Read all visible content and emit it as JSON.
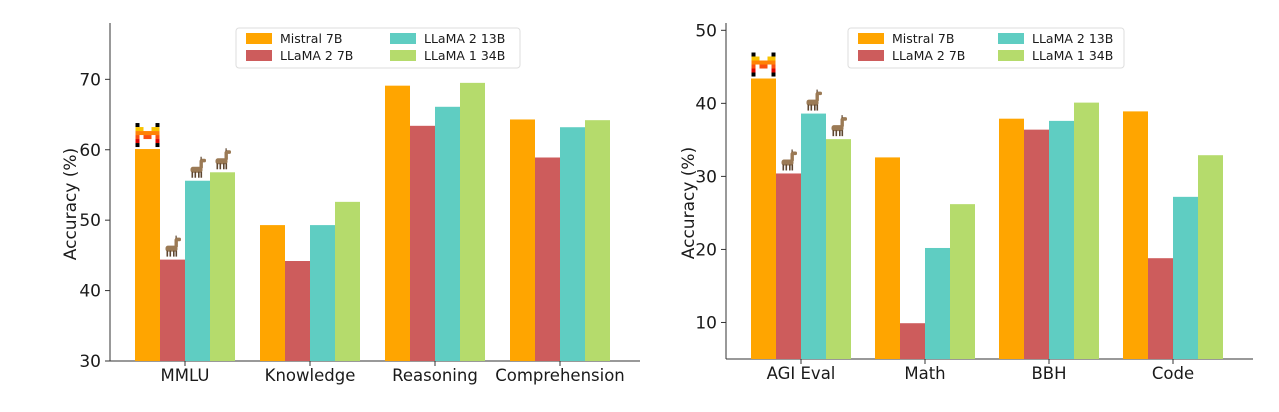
{
  "chart_data": [
    {
      "type": "bar",
      "title": "",
      "xlabel": "",
      "ylabel": "Accuracy (%)",
      "ylim": [
        30,
        78
      ],
      "yticks": [
        30,
        40,
        50,
        60,
        70
      ],
      "categories": [
        "MMLU",
        "Knowledge",
        "Reasoning",
        "Comprehension"
      ],
      "series": [
        {
          "name": "Mistral 7B",
          "color": "#FFA500",
          "values": [
            60.1,
            49.3,
            69.1,
            64.3
          ]
        },
        {
          "name": "LLaMA 2 7B",
          "color": "#CD5C5C",
          "values": [
            44.4,
            44.2,
            63.4,
            58.9
          ]
        },
        {
          "name": "LLaMA 2 13B",
          "color": "#5FCDC2",
          "values": [
            55.6,
            49.3,
            66.1,
            63.2
          ]
        },
        {
          "name": "LLaMA 1 34B",
          "color": "#B5DB6C",
          "values": [
            56.8,
            52.6,
            69.5,
            64.2
          ]
        }
      ],
      "legend": "top-center",
      "icons": [
        {
          "category": "MMLU",
          "series": "Mistral 7B",
          "icon": "mistral-logo-icon"
        },
        {
          "category": "MMLU",
          "series": "LLaMA 2 7B",
          "icon": "llama-icon"
        },
        {
          "category": "MMLU",
          "series": "LLaMA 2 13B",
          "icon": "llama-icon"
        },
        {
          "category": "MMLU",
          "series": "LLaMA 1 34B",
          "icon": "llama-icon"
        }
      ]
    },
    {
      "type": "bar",
      "title": "",
      "xlabel": "",
      "ylabel": "Accuracy (%)",
      "ylim": [
        5,
        51
      ],
      "yticks": [
        10,
        20,
        30,
        40,
        50
      ],
      "categories": [
        "AGI Eval",
        "Math",
        "BBH",
        "Code"
      ],
      "series": [
        {
          "name": "Mistral 7B",
          "color": "#FFA500",
          "values": [
            43.4,
            32.6,
            37.9,
            38.9
          ]
        },
        {
          "name": "LLaMA 2 7B",
          "color": "#CD5C5C",
          "values": [
            30.4,
            9.9,
            36.4,
            18.8
          ]
        },
        {
          "name": "LLaMA 2 13B",
          "color": "#5FCDC2",
          "values": [
            38.6,
            20.2,
            37.6,
            27.2
          ]
        },
        {
          "name": "LLaMA 1 34B",
          "color": "#B5DB6C",
          "values": [
            35.1,
            26.2,
            40.1,
            32.9
          ]
        }
      ],
      "legend": "top-center",
      "icons": [
        {
          "category": "AGI Eval",
          "series": "Mistral 7B",
          "icon": "mistral-logo-icon"
        },
        {
          "category": "AGI Eval",
          "series": "LLaMA 2 7B",
          "icon": "llama-icon"
        },
        {
          "category": "AGI Eval",
          "series": "LLaMA 2 13B",
          "icon": "llama-icon"
        },
        {
          "category": "AGI Eval",
          "series": "LLaMA 1 34B",
          "icon": "llama-icon"
        }
      ]
    }
  ]
}
